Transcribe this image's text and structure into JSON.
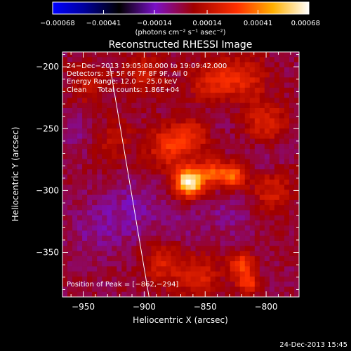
{
  "chart_data": {
    "type": "heatmap",
    "title": "Reconstructed RHESSI Image",
    "xlabel": "Heliocentric X (arcsec)",
    "ylabel": "Heliocentric Y (arcsec)",
    "xlim": [
      -967,
      -773
    ],
    "ylim": [
      -386,
      -188
    ],
    "x_ticks": [
      -950,
      -900,
      -850,
      -800
    ],
    "x_tick_labels": [
      "−950",
      "−900",
      "−850",
      "−800"
    ],
    "y_ticks": [
      -200,
      -250,
      -300,
      -350
    ],
    "y_tick_labels": [
      "−200",
      "−250",
      "−300",
      "−350"
    ],
    "colorbar": {
      "min": -0.00068,
      "max": 0.00068,
      "ticks": [
        -0.00068,
        -0.00041,
        -0.00014,
        0.00014,
        0.00041,
        0.00068
      ],
      "tick_labels": [
        "−0.00068",
        "−0.00041",
        "−0.00014",
        "0.00014",
        "0.00041",
        "0.00068"
      ],
      "unit": "(photons cm⁻² s⁻¹ asec⁻²)"
    },
    "annotations": [
      "24−Dec−2013 19:05:08.000 to 19:09:42.000",
      "Detectors: 3F 5F 6F 7F 8F 9F, All 0",
      "Energy Range: 12.0 − 25.0 keV",
      "Clean     Total counts: 1.86E+04"
    ],
    "peak_label": "Position of Peak = [−862,−294]",
    "peak": [
      -862,
      -294
    ],
    "limb_line": [
      [
        -928,
        -200
      ],
      [
        -896,
        -386
      ]
    ],
    "sources": [
      {
        "x": -863,
        "y": -293,
        "amp": 0.00068,
        "sigma": 8
      },
      {
        "x": -845,
        "y": -285,
        "amp": 0.0003,
        "sigma": 7
      },
      {
        "x": -828,
        "y": -288,
        "amp": 0.0004,
        "sigma": 7
      },
      {
        "x": -820,
        "y": -360,
        "amp": 0.0003,
        "sigma": 7
      },
      {
        "x": -815,
        "y": -375,
        "amp": 0.00028,
        "sigma": 6
      },
      {
        "x": -880,
        "y": -265,
        "amp": 0.00025,
        "sigma": 12
      },
      {
        "x": -860,
        "y": -255,
        "amp": 0.0002,
        "sigma": 10
      },
      {
        "x": -845,
        "y": -215,
        "amp": 0.00022,
        "sigma": 12
      },
      {
        "x": -820,
        "y": -210,
        "amp": 0.0002,
        "sigma": 14
      },
      {
        "x": -800,
        "y": -245,
        "amp": 0.0002,
        "sigma": 12
      },
      {
        "x": -795,
        "y": -300,
        "amp": 0.00018,
        "sigma": 12
      },
      {
        "x": -885,
        "y": -360,
        "amp": 0.00018,
        "sigma": 12
      },
      {
        "x": -855,
        "y": -370,
        "amp": 0.0002,
        "sigma": 12
      },
      {
        "x": -930,
        "y": -260,
        "amp": 0.00015,
        "sigma": 14
      },
      {
        "x": -945,
        "y": -215,
        "amp": 0.00012,
        "sigma": 12
      },
      {
        "x": -900,
        "y": -205,
        "amp": 0.00015,
        "sigma": 12
      },
      {
        "x": -945,
        "y": -255,
        "amp": -0.0001,
        "sigma": 14
      },
      {
        "x": -910,
        "y": -315,
        "amp": -0.0001,
        "sigma": 16
      },
      {
        "x": -940,
        "y": -330,
        "amp": -8e-05,
        "sigma": 16
      },
      {
        "x": -840,
        "y": -230,
        "amp": -8e-05,
        "sigma": 12
      },
      {
        "x": -830,
        "y": -320,
        "amp": -8e-05,
        "sigma": 12
      },
      {
        "x": -800,
        "y": -275,
        "amp": -6e-05,
        "sigma": 10
      },
      {
        "x": -870,
        "y": -330,
        "amp": -6e-05,
        "sigma": 12
      }
    ]
  },
  "footer": {
    "timestamp": "24-Dec-2013 15:45"
  }
}
